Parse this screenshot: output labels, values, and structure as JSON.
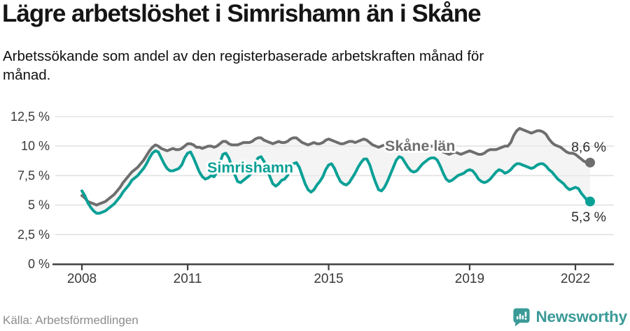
{
  "header": {
    "title": "Lägre arbetslöshet i Simrishamn än i Skåne",
    "subtitle": "Arbetssökande som andel av den registerbaserade arbetskraften månad för\nmånad."
  },
  "footer": {
    "source": "Källa: Arbetsförmedlingen",
    "brand": "Newsworthy"
  },
  "colors": {
    "simrishamn": "#0aa096",
    "skane": "#6e6e6e",
    "grid": "#e2e2e2",
    "axis": "#3f3f3f",
    "fill_between": "#ececec",
    "end_label_text": "#2b2b2b",
    "brand_teal": "#3a9a97"
  },
  "chart_data": {
    "type": "line",
    "title": "Lägre arbetslöshet i Simrishamn än i Skåne",
    "subtitle": "Arbetssökande som andel av den registerbaserade arbetskraften månad för månad.",
    "x_unit": "month",
    "x_start": "2008-01",
    "x_end": "2022-06",
    "grid": true,
    "legend_position": "inline-labels",
    "ylim": [
      0,
      13.3
    ],
    "x_ticks": [
      2008,
      2011,
      2015,
      2019,
      2022
    ],
    "y_ticks": [
      {
        "v": 0,
        "label": "0 %"
      },
      {
        "v": 2.5,
        "label": "2,5 %"
      },
      {
        "v": 5,
        "label": "5 %"
      },
      {
        "v": 7.5,
        "label": "7,5 %"
      },
      {
        "v": 10,
        "label": "10 %"
      },
      {
        "v": 12.5,
        "label": "12,5 %"
      }
    ],
    "fill_between": true,
    "series": [
      {
        "id": "skane",
        "name": "Skåne län",
        "color": "#6e6e6e",
        "end_label": "8,6 %",
        "end_value": 8.6,
        "values": [
          5.8,
          5.6,
          5.3,
          5.2,
          5.1,
          5.0,
          5.1,
          5.2,
          5.3,
          5.5,
          5.7,
          5.9,
          6.2,
          6.5,
          6.9,
          7.2,
          7.5,
          7.8,
          8.0,
          8.2,
          8.5,
          8.8,
          9.2,
          9.6,
          9.9,
          10.1,
          10.0,
          9.8,
          9.7,
          9.6,
          9.7,
          9.8,
          9.7,
          9.7,
          9.8,
          10.0,
          10.2,
          10.2,
          10.1,
          9.9,
          9.9,
          9.8,
          9.9,
          10.0,
          10.0,
          9.9,
          10.0,
          10.2,
          10.4,
          10.4,
          10.2,
          10.1,
          10.1,
          10.1,
          10.2,
          10.3,
          10.3,
          10.3,
          10.4,
          10.6,
          10.7,
          10.7,
          10.5,
          10.4,
          10.3,
          10.2,
          10.3,
          10.4,
          10.3,
          10.3,
          10.4,
          10.6,
          10.7,
          10.7,
          10.5,
          10.3,
          10.2,
          10.1,
          10.2,
          10.3,
          10.2,
          10.2,
          10.3,
          10.5,
          10.6,
          10.5,
          10.4,
          10.3,
          10.2,
          10.2,
          10.3,
          10.4,
          10.4,
          10.3,
          10.4,
          10.5,
          10.6,
          10.5,
          10.3,
          10.1,
          10.0,
          9.9,
          10.0,
          10.1,
          10.1,
          10.0,
          10.0,
          10.1,
          10.2,
          10.1,
          10.0,
          9.9,
          9.8,
          9.8,
          9.9,
          10.0,
          10.0,
          9.9,
          9.9,
          10.0,
          10.0,
          9.9,
          9.7,
          9.5,
          9.4,
          9.3,
          9.4,
          9.5,
          9.4,
          9.3,
          9.4,
          9.5,
          9.6,
          9.5,
          9.4,
          9.3,
          9.3,
          9.4,
          9.6,
          9.7,
          9.7,
          9.7,
          9.8,
          9.9,
          10.0,
          10.0,
          10.3,
          10.9,
          11.3,
          11.5,
          11.4,
          11.3,
          11.2,
          11.1,
          11.2,
          11.3,
          11.3,
          11.2,
          11.0,
          10.6,
          10.3,
          10.1,
          10.0,
          9.9,
          9.7,
          9.5,
          9.4,
          9.4,
          9.3,
          9.1,
          8.9,
          8.7,
          8.6,
          8.6
        ]
      },
      {
        "id": "simrishamn",
        "name": "Simrishamn",
        "color": "#0aa096",
        "end_label": "5,3 %",
        "end_value": 5.3,
        "values": [
          6.2,
          5.8,
          5.2,
          4.8,
          4.5,
          4.3,
          4.3,
          4.4,
          4.5,
          4.7,
          4.9,
          5.1,
          5.4,
          5.7,
          6.1,
          6.4,
          6.7,
          7.1,
          7.3,
          7.5,
          7.8,
          8.1,
          8.5,
          9.0,
          9.4,
          9.6,
          9.5,
          9.0,
          8.5,
          8.1,
          7.9,
          7.9,
          8.0,
          8.1,
          8.4,
          9.0,
          9.4,
          9.5,
          9.0,
          8.4,
          7.8,
          7.4,
          7.2,
          7.3,
          7.5,
          7.4,
          7.8,
          8.6,
          9.3,
          9.4,
          9.0,
          8.3,
          7.6,
          7.0,
          6.9,
          7.1,
          7.3,
          7.5,
          7.9,
          8.6,
          9.0,
          9.1,
          8.7,
          8.1,
          7.4,
          6.8,
          6.6,
          6.8,
          7.1,
          7.2,
          7.5,
          8.1,
          8.5,
          8.6,
          8.2,
          7.5,
          6.8,
          6.3,
          6.1,
          6.3,
          6.7,
          7.0,
          7.4,
          8.0,
          8.4,
          8.5,
          8.1,
          7.5,
          7.0,
          6.8,
          6.7,
          6.9,
          7.3,
          7.7,
          8.2,
          8.6,
          8.9,
          8.9,
          8.4,
          7.6,
          6.9,
          6.3,
          6.2,
          6.5,
          7.0,
          7.6,
          8.2,
          8.8,
          9.1,
          9.0,
          8.6,
          8.2,
          7.9,
          7.8,
          7.9,
          8.2,
          8.5,
          8.7,
          8.9,
          9.0,
          9.0,
          8.8,
          8.3,
          7.7,
          7.2,
          7.0,
          7.1,
          7.3,
          7.5,
          7.6,
          7.7,
          7.9,
          8.0,
          7.9,
          7.6,
          7.2,
          7.0,
          6.9,
          7.0,
          7.2,
          7.5,
          7.8,
          8.0,
          7.9,
          7.7,
          7.8,
          8.0,
          8.3,
          8.5,
          8.5,
          8.4,
          8.3,
          8.2,
          8.1,
          8.2,
          8.4,
          8.5,
          8.5,
          8.3,
          8.0,
          7.8,
          7.5,
          7.2,
          7.0,
          6.8,
          6.5,
          6.3,
          6.4,
          6.5,
          6.4,
          6.0,
          5.7,
          5.4,
          5.3
        ]
      }
    ]
  }
}
